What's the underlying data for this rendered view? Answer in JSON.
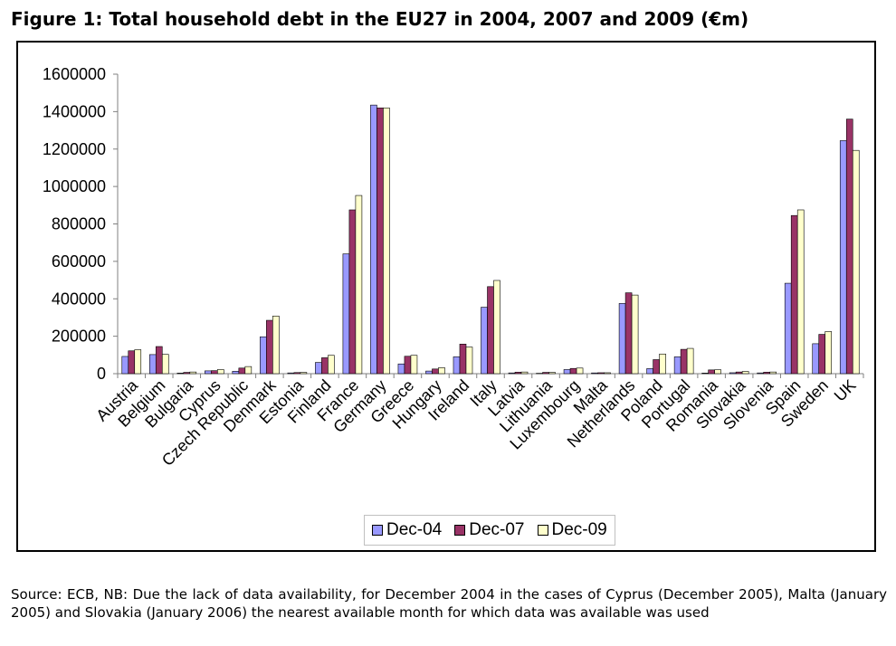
{
  "figure": {
    "title": "Figure 1: Total household debt in the EU27 in 2004, 2007 and 2009 (€m)",
    "source": "Source: ECB, NB: Due the lack of data availability, for December 2004 in the cases of Cyprus (December 2005), Malta (January 2005) and Slovakia (January 2006) the nearest available month for which data was available was used"
  },
  "chart_data": {
    "type": "bar",
    "title": "Total household debt in the EU27 in 2004, 2007 and 2009 (€m)",
    "xlabel": "",
    "ylabel": "",
    "ylim": [
      0,
      1600000
    ],
    "yticks": [
      "1600000",
      "1400000",
      "1200000",
      "1000000",
      "800000",
      "600000",
      "400000",
      "200000",
      "0"
    ],
    "grid": false,
    "legend_position": "bottom",
    "categories": [
      "Austria",
      "Belgium",
      "Bulgaria",
      "Cyprus",
      "Czech Republic",
      "Denmark",
      "Estonia",
      "Finland",
      "France",
      "Germany",
      "Greece",
      "Hungary",
      "Ireland",
      "Italy",
      "Latvia",
      "Lithuania",
      "Luxembourg",
      "Malta",
      "Netherlands",
      "Poland",
      "Portugal",
      "Romania",
      "Slovakia",
      "Slovenia",
      "Spain",
      "Sweden",
      "UK"
    ],
    "series": [
      {
        "name": "Dec-04",
        "color": "#9999ff",
        "values": [
          92000,
          102000,
          3000,
          15000,
          13000,
          197000,
          4000,
          60000,
          640000,
          1435000,
          52000,
          14000,
          90000,
          355000,
          4000,
          2000,
          22000,
          4000,
          375000,
          27000,
          90000,
          3000,
          5000,
          4000,
          483000,
          160000,
          1245000
        ]
      },
      {
        "name": "Dec-07",
        "color": "#993366",
        "values": [
          122000,
          145000,
          7000,
          16000,
          30000,
          285000,
          6000,
          85000,
          875000,
          1420000,
          93000,
          25000,
          158000,
          465000,
          8000,
          7000,
          28000,
          5000,
          432000,
          75000,
          130000,
          20000,
          9000,
          8000,
          845000,
          210000,
          1360000
        ]
      },
      {
        "name": "Dec-09",
        "color": "#ffffcc",
        "values": [
          128000,
          103000,
          9000,
          22000,
          38000,
          308000,
          7000,
          98000,
          952000,
          1420000,
          98000,
          32000,
          142000,
          498000,
          9000,
          7000,
          30000,
          5000,
          420000,
          105000,
          135000,
          21000,
          12000,
          9000,
          875000,
          225000,
          1193000
        ]
      }
    ]
  }
}
